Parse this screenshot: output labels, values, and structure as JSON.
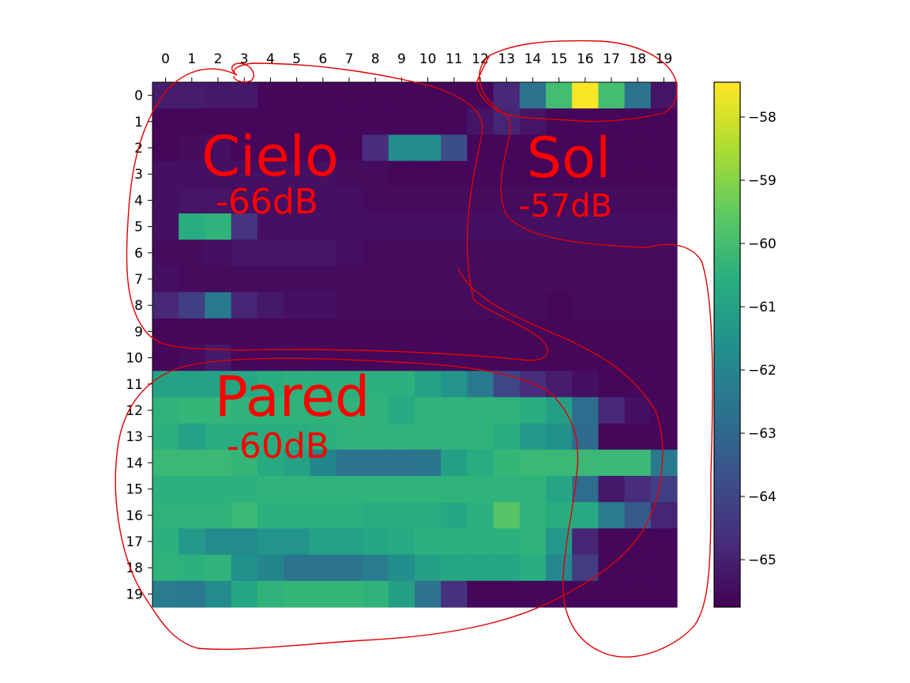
{
  "chart_data": {
    "type": "heatmap",
    "title": "",
    "xlabel": "",
    "ylabel": "",
    "x_ticks": [
      "0",
      "1",
      "2",
      "3",
      "4",
      "5",
      "6",
      "7",
      "8",
      "9",
      "10",
      "11",
      "12",
      "13",
      "14",
      "15",
      "16",
      "17",
      "18",
      "19"
    ],
    "y_ticks": [
      "0",
      "1",
      "2",
      "3",
      "4",
      "5",
      "6",
      "7",
      "8",
      "9",
      "10",
      "11",
      "12",
      "13",
      "14",
      "15",
      "16",
      "17",
      "18",
      "19"
    ],
    "x_axis_position": "top",
    "colormap": "viridis",
    "vmin": -65.75,
    "vmax": -57.45,
    "colorbar": {
      "position": "right",
      "ticks": [
        "−58",
        "−59",
        "−60",
        "−61",
        "−62",
        "−63",
        "−64",
        "−65"
      ],
      "tick_values": [
        -58,
        -59,
        -60,
        -61,
        -62,
        -63,
        -64,
        -65
      ]
    },
    "values": [
      [
        -65.1,
        -65.1,
        -65.2,
        -65.2,
        -65.6,
        -65.6,
        -65.6,
        -65.6,
        -65.6,
        -65.6,
        -65.6,
        -65.6,
        -65.6,
        -64.8,
        -62.6,
        -60.0,
        -57.5,
        -60.0,
        -62.6,
        -65.3
      ],
      [
        -65.6,
        -65.6,
        -65.6,
        -65.6,
        -65.6,
        -65.6,
        -65.6,
        -65.6,
        -65.6,
        -65.6,
        -65.6,
        -65.6,
        -65.3,
        -64.9,
        -65.3,
        -65.6,
        -65.6,
        -65.6,
        -65.6,
        -65.6
      ],
      [
        -65.6,
        -65.5,
        -65.4,
        -65.6,
        -65.6,
        -65.6,
        -65.6,
        -65.6,
        -64.7,
        -61.8,
        -61.8,
        -63.8,
        -65.6,
        -65.6,
        -65.6,
        -65.6,
        -65.6,
        -65.6,
        -65.6,
        -65.6
      ],
      [
        -65.4,
        -65.4,
        -65.4,
        -65.4,
        -65.4,
        -65.4,
        -65.4,
        -65.5,
        -65.5,
        -65.6,
        -65.6,
        -65.6,
        -65.6,
        -65.6,
        -65.6,
        -65.6,
        -65.6,
        -65.6,
        -65.6,
        -65.6
      ],
      [
        -65.4,
        -65.3,
        -65.3,
        -65.4,
        -65.4,
        -65.4,
        -65.4,
        -65.4,
        -65.5,
        -65.5,
        -65.5,
        -65.5,
        -65.5,
        -65.5,
        -65.5,
        -65.5,
        -65.5,
        -65.5,
        -65.5,
        -65.5
      ],
      [
        -65.4,
        -60.6,
        -60.4,
        -64.5,
        -65.4,
        -65.4,
        -65.4,
        -65.4,
        -65.4,
        -65.4,
        -65.4,
        -65.4,
        -65.4,
        -65.4,
        -65.4,
        -65.4,
        -65.4,
        -65.4,
        -65.4,
        -65.4
      ],
      [
        -65.5,
        -65.5,
        -65.4,
        -65.3,
        -65.3,
        -65.3,
        -65.3,
        -65.4,
        -65.5,
        -65.5,
        -65.5,
        -65.5,
        -65.5,
        -65.5,
        -65.5,
        -65.5,
        -65.5,
        -65.5,
        -65.5,
        -65.5
      ],
      [
        -65.4,
        -65.5,
        -65.5,
        -65.5,
        -65.5,
        -65.5,
        -65.5,
        -65.5,
        -65.5,
        -65.5,
        -65.5,
        -65.5,
        -65.5,
        -65.5,
        -65.5,
        -65.5,
        -65.5,
        -65.5,
        -65.5,
        -65.5
      ],
      [
        -64.8,
        -64.2,
        -62.4,
        -64.9,
        -65.2,
        -65.4,
        -65.4,
        -65.5,
        -65.5,
        -65.5,
        -65.5,
        -65.5,
        -65.5,
        -65.5,
        -65.5,
        -65.6,
        -65.5,
        -65.5,
        -65.5,
        -65.5
      ],
      [
        -65.6,
        -65.6,
        -65.6,
        -65.6,
        -65.6,
        -65.6,
        -65.6,
        -65.6,
        -65.6,
        -65.6,
        -65.6,
        -65.6,
        -65.6,
        -65.6,
        -65.6,
        -65.6,
        -65.6,
        -65.6,
        -65.6,
        -65.6
      ],
      [
        -65.6,
        -65.5,
        -65.2,
        -65.6,
        -65.6,
        -65.6,
        -65.6,
        -65.6,
        -65.6,
        -65.6,
        -65.6,
        -65.6,
        -65.6,
        -65.6,
        -65.6,
        -65.6,
        -65.6,
        -65.6,
        -65.6,
        -65.6
      ],
      [
        -61.0,
        -61.0,
        -61.0,
        -60.8,
        -60.6,
        -60.5,
        -60.5,
        -60.5,
        -60.5,
        -60.5,
        -61.0,
        -61.5,
        -62.4,
        -64.0,
        -64.7,
        -65.1,
        -65.4,
        -65.6,
        -65.6,
        -65.6
      ],
      [
        -60.4,
        -60.3,
        -60.3,
        -60.4,
        -60.4,
        -60.4,
        -60.4,
        -60.4,
        -60.4,
        -60.7,
        -60.4,
        -60.4,
        -60.4,
        -60.4,
        -60.6,
        -61.1,
        -62.8,
        -64.8,
        -65.4,
        -65.6
      ],
      [
        -60.5,
        -61.0,
        -60.6,
        -60.6,
        -60.6,
        -60.6,
        -60.5,
        -60.4,
        -60.4,
        -60.4,
        -60.4,
        -60.4,
        -60.4,
        -60.6,
        -61.3,
        -61.6,
        -62.9,
        -65.6,
        -65.6,
        -65.6
      ],
      [
        -60.2,
        -60.2,
        -60.2,
        -60.3,
        -60.7,
        -61.0,
        -62.0,
        -62.6,
        -62.6,
        -62.6,
        -62.5,
        -61.1,
        -60.6,
        -60.3,
        -60.2,
        -60.2,
        -60.2,
        -60.2,
        -60.2,
        -62.4
      ],
      [
        -60.5,
        -60.5,
        -60.5,
        -60.5,
        -60.4,
        -60.4,
        -60.4,
        -60.4,
        -60.4,
        -60.4,
        -60.4,
        -60.4,
        -60.4,
        -60.4,
        -60.4,
        -60.9,
        -62.8,
        -65.2,
        -64.7,
        -64.2
      ],
      [
        -60.4,
        -60.4,
        -60.4,
        -60.2,
        -60.5,
        -60.5,
        -60.5,
        -60.5,
        -60.6,
        -60.6,
        -60.6,
        -60.8,
        -60.5,
        -59.7,
        -60.4,
        -60.6,
        -60.7,
        -62.3,
        -63.4,
        -64.9
      ],
      [
        -60.5,
        -61.3,
        -61.8,
        -61.8,
        -61.5,
        -61.5,
        -61.0,
        -61.0,
        -60.8,
        -60.7,
        -60.5,
        -60.5,
        -60.5,
        -60.5,
        -60.4,
        -61.4,
        -64.9,
        -65.6,
        -65.6,
        -65.6
      ],
      [
        -60.4,
        -60.5,
        -60.4,
        -61.6,
        -62.0,
        -62.6,
        -62.6,
        -62.6,
        -62.3,
        -61.7,
        -61.1,
        -60.8,
        -60.8,
        -60.8,
        -60.6,
        -61.9,
        -64.3,
        -65.6,
        -65.6,
        -65.6
      ],
      [
        -62.3,
        -62.4,
        -61.8,
        -60.8,
        -60.4,
        -60.3,
        -60.3,
        -60.3,
        -60.4,
        -61.1,
        -62.6,
        -64.6,
        -65.6,
        -65.6,
        -65.6,
        -65.6,
        -65.6,
        -65.6,
        -65.6,
        -65.6
      ]
    ],
    "annotations": [
      {
        "label": "Cielo",
        "value": "-66dB",
        "color": "#ff0000"
      },
      {
        "label": "Sol",
        "value": "-57dB",
        "color": "#ff0000"
      },
      {
        "label": "Pared",
        "value": "-60dB",
        "color": "#ff0000"
      }
    ]
  }
}
